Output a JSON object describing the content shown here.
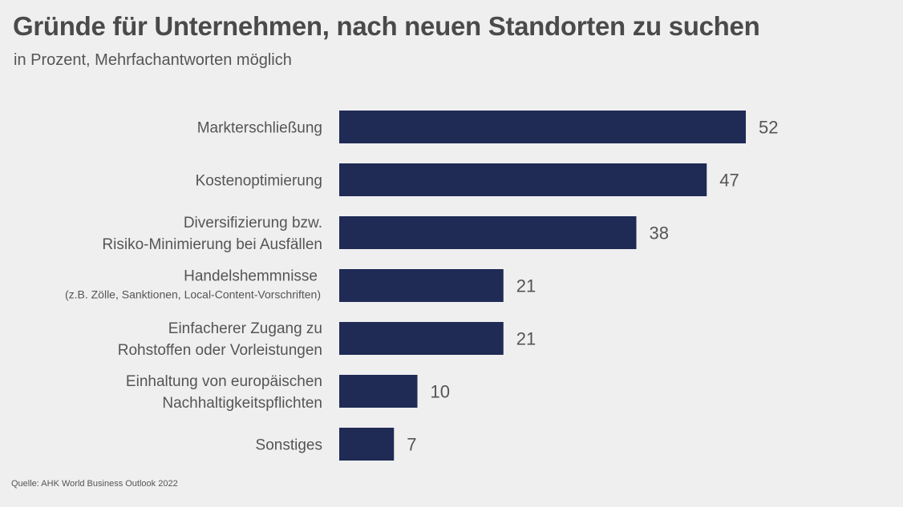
{
  "title": "Gründe für Unternehmen, nach neuen Standorten zu suchen",
  "subtitle": "in Prozent, Mehrfachantworten möglich",
  "source": "Quelle: AHK World Business Outlook 2022",
  "colors": {
    "bar": "#1f2a55",
    "background": "#efefef",
    "text": "#555555"
  },
  "chart_data": {
    "type": "bar",
    "orientation": "horizontal",
    "title": "Gründe für Unternehmen, nach neuen Standorten zu suchen",
    "subtitle": "in Prozent, Mehrfachantworten möglich",
    "xlabel": "",
    "ylabel": "",
    "xlim": [
      0,
      52
    ],
    "grid": false,
    "legend": "none",
    "categories": [
      {
        "lines": [
          "Markterschließung"
        ],
        "note": ""
      },
      {
        "lines": [
          "Kostenoptimierung"
        ],
        "note": ""
      },
      {
        "lines": [
          "Diversifizierung bzw.",
          "Risiko-Minimierung bei Ausfällen"
        ],
        "note": ""
      },
      {
        "lines": [
          "Handelshemmnisse"
        ],
        "note": "(z.B. Zölle, Sanktionen, Local-Content-Vorschriften)"
      },
      {
        "lines": [
          "Einfacherer Zugang zu",
          "Rohstoffen oder Vorleistungen"
        ],
        "note": ""
      },
      {
        "lines": [
          "Einhaltung von europäischen",
          "Nachhaltigkeitspflichten"
        ],
        "note": ""
      },
      {
        "lines": [
          "Sonstiges"
        ],
        "note": ""
      }
    ],
    "values": [
      52,
      47,
      38,
      21,
      21,
      10,
      7
    ],
    "value_labels": [
      "52",
      "47",
      "38",
      "21",
      "21",
      "10",
      "7"
    ]
  }
}
